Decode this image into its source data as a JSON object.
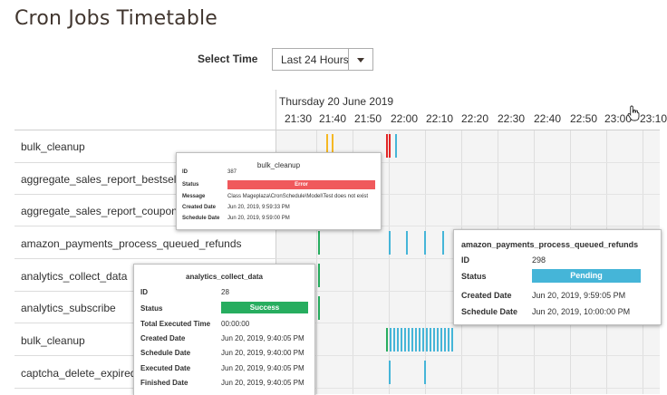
{
  "page": {
    "title": "Cron Jobs Timetable"
  },
  "filter": {
    "label": "Select Time",
    "selected": "Last 24 Hours"
  },
  "timeline": {
    "date": "Thursday 20 June 2019",
    "ticks": [
      "21:30",
      "21:40",
      "21:50",
      "22:00",
      "22:10",
      "22:20",
      "22:30",
      "22:40",
      "22:50",
      "23:00",
      "23:10"
    ]
  },
  "jobs": [
    "bulk_cleanup",
    "aggregate_sales_report_bestsellers_data",
    "aggregate_sales_report_coupons_data",
    "amazon_payments_process_queued_refunds",
    "analytics_collect_data",
    "analytics_subscribe",
    "bulk_cleanup",
    "captcha_delete_expired_images"
  ],
  "tooltips": {
    "bulk_cleanup": {
      "title": "bulk_cleanup",
      "id_label": "ID",
      "id": "387",
      "status_label": "Status",
      "status": "Error",
      "message_label": "Message",
      "message": "Class Mageplaza\\CronSchedule\\Model\\Test does not exist",
      "created_label": "Created Date",
      "created": "Jun 20, 2019, 9:59:33 PM",
      "schedule_label": "Schedule Date",
      "schedule": "Jun 20, 2019, 9:59:00 PM"
    },
    "amazon": {
      "title": "amazon_payments_process_queued_refunds",
      "id_label": "ID",
      "id": "298",
      "status_label": "Status",
      "status": "Pending",
      "created_label": "Created Date",
      "created": "Jun 20, 2019, 9:59:05 PM",
      "schedule_label": "Schedule Date",
      "schedule": "Jun 20, 2019, 10:00:00 PM"
    },
    "analytics": {
      "title": "analytics_collect_data",
      "id_label": "ID",
      "id": "28",
      "status_label": "Status",
      "status": "Success",
      "total_label": "Total Executed Time",
      "total": "00:00:00",
      "created_label": "Created Date",
      "created": "Jun 20, 2019, 9:40:05 PM",
      "schedule_label": "Schedule Date",
      "schedule": "Jun 20, 2019, 9:40:00 PM",
      "executed_label": "Executed Date",
      "executed": "Jun 20, 2019, 9:40:05 PM",
      "finished_label": "Finished Date",
      "finished": "Jun 20, 2019, 9:40:05 PM"
    }
  },
  "colors": {
    "error": "#f0595c",
    "pending": "#45b5d8",
    "success": "#27ad5f",
    "warning": "#f5b823"
  }
}
